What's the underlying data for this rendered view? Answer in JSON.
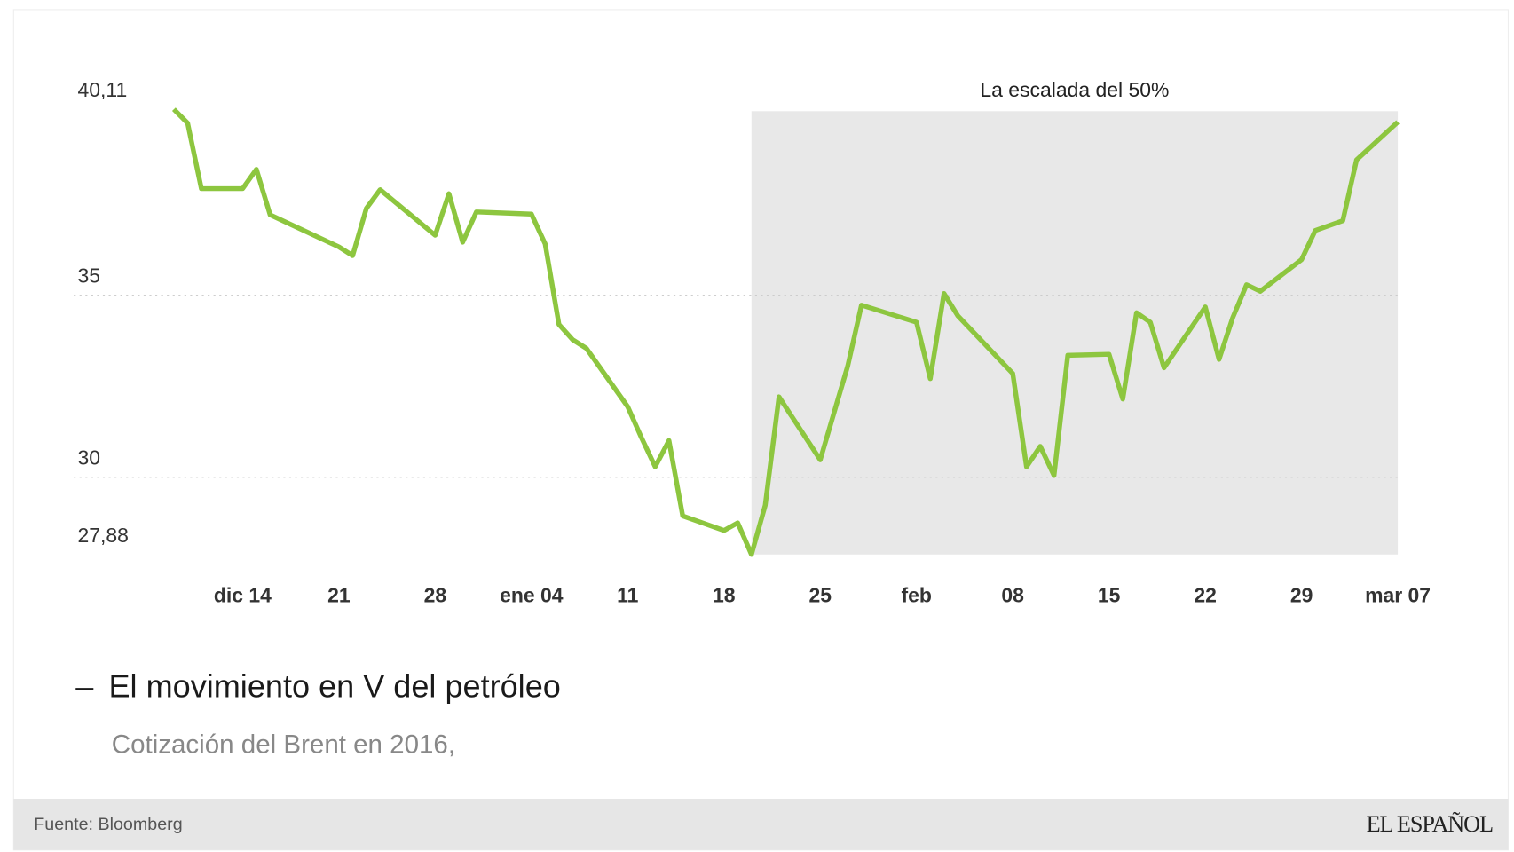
{
  "chart_data": {
    "type": "line",
    "title": "El movimiento en V del petróleo",
    "subtitle": "Cotización del Brent en 2016,",
    "annotation": {
      "label": "La escalada del 50%",
      "x_range": [
        "2016-01-20",
        "2016-03-07"
      ]
    },
    "y_ticks": [
      {
        "value": 40.11,
        "label": "40,11"
      },
      {
        "value": 35,
        "label": "35"
      },
      {
        "value": 30,
        "label": "30"
      },
      {
        "value": 27.88,
        "label": "27,88"
      }
    ],
    "y_gridlines": [
      35,
      30
    ],
    "ylim": [
      27.88,
      40.11
    ],
    "x_ticks": [
      {
        "date": "2015-12-14",
        "label": "dic 14"
      },
      {
        "date": "2015-12-21",
        "label": "21"
      },
      {
        "date": "2015-12-28",
        "label": "28"
      },
      {
        "date": "2016-01-04",
        "label": "ene 04"
      },
      {
        "date": "2016-01-11",
        "label": "11"
      },
      {
        "date": "2016-01-18",
        "label": "18"
      },
      {
        "date": "2016-01-25",
        "label": "25"
      },
      {
        "date": "2016-02-01",
        "label": "feb"
      },
      {
        "date": "2016-02-08",
        "label": "08"
      },
      {
        "date": "2016-02-15",
        "label": "15"
      },
      {
        "date": "2016-02-22",
        "label": "22"
      },
      {
        "date": "2016-02-29",
        "label": "29"
      },
      {
        "date": "2016-03-07",
        "label": "mar 07"
      }
    ],
    "grid": "horizontal dotted",
    "line_color": "#8dc63f",
    "shade_color": "#e8e8e8",
    "series": [
      {
        "points": [
          [
            "2015-12-09",
            40.11
          ],
          [
            "2015-12-10",
            39.73
          ],
          [
            "2015-12-11",
            37.93
          ],
          [
            "2015-12-14",
            37.93
          ],
          [
            "2015-12-15",
            38.46
          ],
          [
            "2015-12-16",
            37.21
          ],
          [
            "2015-12-21",
            36.33
          ],
          [
            "2015-12-22",
            36.09
          ],
          [
            "2015-12-23",
            37.39
          ],
          [
            "2015-12-24",
            37.9
          ],
          [
            "2015-12-28",
            36.65
          ],
          [
            "2015-12-29",
            37.79
          ],
          [
            "2015-12-30",
            36.46
          ],
          [
            "2015-12-31",
            37.29
          ],
          [
            "2016-01-04",
            37.23
          ],
          [
            "2016-01-05",
            36.41
          ],
          [
            "2016-01-06",
            34.2
          ],
          [
            "2016-01-07",
            33.78
          ],
          [
            "2016-01-08",
            33.54
          ],
          [
            "2016-01-11",
            31.94
          ],
          [
            "2016-01-12",
            31.09
          ],
          [
            "2016-01-13",
            30.29
          ],
          [
            "2016-01-14",
            31.01
          ],
          [
            "2016-01-15",
            28.94
          ],
          [
            "2016-01-18",
            28.54
          ],
          [
            "2016-01-19",
            28.75
          ],
          [
            "2016-01-20",
            27.88
          ],
          [
            "2016-01-21",
            29.23
          ],
          [
            "2016-01-22",
            32.21
          ],
          [
            "2016-01-25",
            30.48
          ],
          [
            "2016-01-27",
            33.06
          ],
          [
            "2016-01-28",
            34.73
          ],
          [
            "2016-02-01",
            34.26
          ],
          [
            "2016-02-02",
            32.71
          ],
          [
            "2016-02-03",
            35.05
          ],
          [
            "2016-02-04",
            34.44
          ],
          [
            "2016-02-08",
            32.85
          ],
          [
            "2016-02-09",
            30.29
          ],
          [
            "2016-02-10",
            30.85
          ],
          [
            "2016-02-11",
            30.05
          ],
          [
            "2016-02-12",
            33.35
          ],
          [
            "2016-02-15",
            33.38
          ],
          [
            "2016-02-16",
            32.15
          ],
          [
            "2016-02-17",
            34.52
          ],
          [
            "2016-02-18",
            34.26
          ],
          [
            "2016-02-19",
            33.01
          ],
          [
            "2016-02-22",
            34.68
          ],
          [
            "2016-02-23",
            33.24
          ],
          [
            "2016-02-24",
            34.39
          ],
          [
            "2016-02-25",
            35.29
          ],
          [
            "2016-02-26",
            35.11
          ],
          [
            "2016-02-29",
            35.98
          ],
          [
            "2016-03-01",
            36.78
          ],
          [
            "2016-03-03",
            37.05
          ],
          [
            "2016-03-04",
            38.72
          ],
          [
            "2016-03-07",
            39.76
          ]
        ]
      }
    ]
  },
  "footer": {
    "source": "Fuente: Bloomberg",
    "logo": "EL ESPAÑOL"
  }
}
